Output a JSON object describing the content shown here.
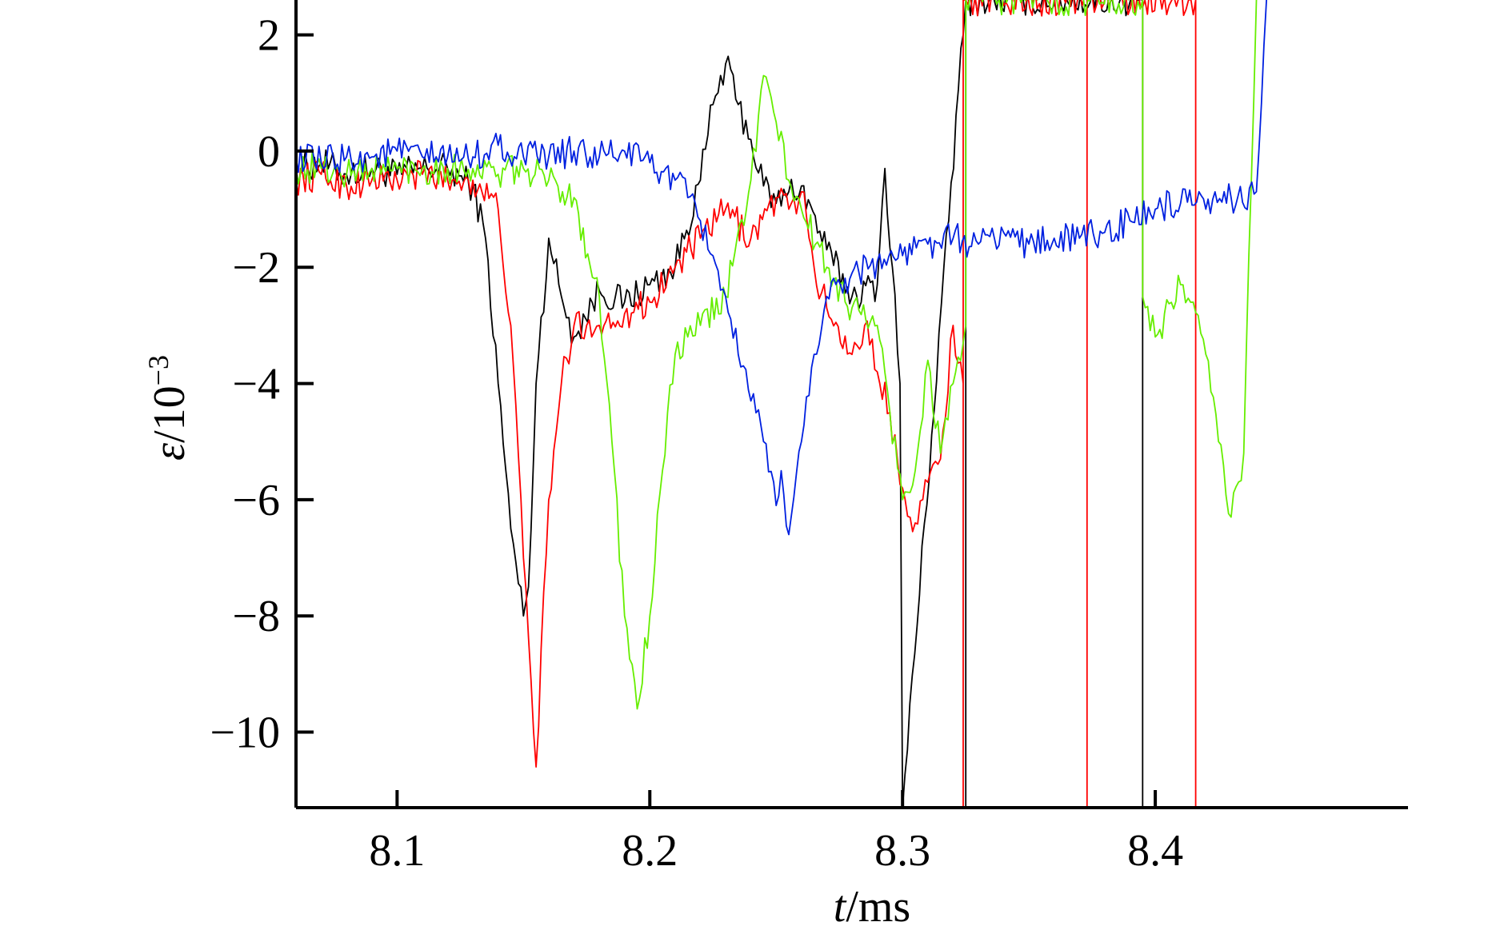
{
  "chart_data": {
    "type": "line",
    "title": "",
    "xlabel": {
      "var": "t",
      "rest": "/ms"
    },
    "ylabel": {
      "var": "ε",
      "rest": "/10",
      "sup": "−3"
    },
    "xlim": [
      8.06,
      8.5
    ],
    "ylim": [
      -11.3,
      2.6
    ],
    "xticks": [
      8.1,
      8.2,
      8.3,
      8.4
    ],
    "xtick_labels": [
      "8.1",
      "8.2",
      "8.3",
      "8.4"
    ],
    "yticks": [
      2,
      0,
      -2,
      -4,
      -6,
      -8,
      -10
    ],
    "ytick_labels": [
      "2",
      "0",
      "−2",
      "−4",
      "−6",
      "−8",
      "−10"
    ],
    "grid": false,
    "legend": "none",
    "series": [
      {
        "color": "#000000",
        "x": [
          8.06,
          8.07,
          8.08,
          8.09,
          8.1,
          8.11,
          8.12,
          8.13,
          8.135,
          8.14,
          8.145,
          8.15,
          8.152,
          8.155,
          8.16,
          8.165,
          8.17,
          8.18,
          8.19,
          8.2,
          8.21,
          8.22,
          8.225,
          8.23,
          8.235,
          8.24,
          8.245,
          8.25,
          8.255,
          8.26,
          8.27,
          8.28,
          8.29,
          8.293,
          8.296,
          8.299,
          8.3,
          8.325,
          8.325,
          8.325,
          8.395,
          8.395,
          8.395
        ],
        "y": [
          -0.3,
          -0.2,
          -0.4,
          -0.3,
          -0.4,
          -0.3,
          -0.3,
          -0.6,
          -1.5,
          -4.0,
          -6.5,
          -8.0,
          -7.5,
          -4.0,
          -1.5,
          -2.5,
          -3.2,
          -2.4,
          -2.6,
          -2.3,
          -2.0,
          -0.5,
          0.8,
          1.5,
          0.8,
          0.2,
          -0.6,
          -0.9,
          -0.7,
          -0.6,
          -1.7,
          -2.5,
          -2.3,
          -0.3,
          -2.0,
          -4.0,
          -11.3,
          2.6,
          -11.3,
          2.6,
          2.6,
          -11.3,
          2.6
        ]
      },
      {
        "color": "#ff0000",
        "x": [
          8.06,
          8.07,
          8.08,
          8.09,
          8.1,
          8.11,
          8.12,
          8.13,
          8.14,
          8.145,
          8.15,
          8.155,
          8.16,
          8.165,
          8.17,
          8.175,
          8.18,
          8.19,
          8.2,
          8.21,
          8.22,
          8.23,
          8.24,
          8.25,
          8.255,
          8.26,
          8.265,
          8.27,
          8.28,
          8.285,
          8.29,
          8.295,
          8.3,
          8.305,
          8.31,
          8.315,
          8.32,
          8.324,
          8.324,
          8.324,
          8.373,
          8.373,
          8.373,
          8.416,
          8.416
        ],
        "y": [
          -0.5,
          -0.4,
          -0.6,
          -0.5,
          -0.5,
          -0.4,
          -0.5,
          -0.5,
          -1.0,
          -3.0,
          -7.0,
          -10.6,
          -6.0,
          -4.0,
          -3.0,
          -3.0,
          -3.0,
          -2.8,
          -2.6,
          -2.0,
          -1.5,
          -1.0,
          -1.5,
          -0.8,
          -1.0,
          -0.7,
          -2.0,
          -2.7,
          -3.5,
          -3.0,
          -3.8,
          -4.5,
          -5.8,
          -6.4,
          -5.7,
          -5.3,
          -3.0,
          -4.0,
          -11.3,
          2.6,
          2.6,
          -11.3,
          2.6,
          2.6,
          -11.3
        ]
      },
      {
        "color": "#66ee00",
        "x": [
          8.06,
          8.07,
          8.08,
          8.09,
          8.1,
          8.11,
          8.12,
          8.13,
          8.14,
          8.15,
          8.16,
          8.17,
          8.18,
          8.185,
          8.19,
          8.195,
          8.2,
          8.205,
          8.21,
          8.215,
          8.22,
          8.23,
          8.24,
          8.245,
          8.25,
          8.255,
          8.26,
          8.27,
          8.28,
          8.29,
          8.295,
          8.3,
          8.305,
          8.31,
          8.315,
          8.32,
          8.325,
          8.325,
          8.395,
          8.395,
          8.4,
          8.41,
          8.415,
          8.42,
          8.425,
          8.43,
          8.435,
          8.44
        ],
        "y": [
          -0.3,
          -0.3,
          -0.4,
          -0.3,
          -0.3,
          -0.3,
          -0.3,
          -0.3,
          -0.4,
          -0.3,
          -0.5,
          -0.8,
          -2.5,
          -5.0,
          -8.0,
          -9.6,
          -8.0,
          -5.5,
          -3.5,
          -3.2,
          -3.0,
          -2.5,
          -0.5,
          1.3,
          0.5,
          -0.5,
          -1.0,
          -2.0,
          -2.7,
          -3.0,
          -4.5,
          -6.0,
          -5.5,
          -3.6,
          -5.2,
          -4.0,
          -3.0,
          2.6,
          2.6,
          -2.5,
          -3.2,
          -2.3,
          -2.6,
          -3.5,
          -5.0,
          -6.3,
          -5.2,
          2.6
        ]
      },
      {
        "color": "#0020e0",
        "x": [
          8.06,
          8.07,
          8.08,
          8.09,
          8.1,
          8.11,
          8.12,
          8.13,
          8.14,
          8.15,
          8.16,
          8.17,
          8.18,
          8.19,
          8.2,
          8.21,
          8.215,
          8.22,
          8.225,
          8.23,
          8.235,
          8.24,
          8.245,
          8.25,
          8.252,
          8.255,
          8.26,
          8.265,
          8.27,
          8.28,
          8.29,
          8.3,
          8.31,
          8.32,
          8.33,
          8.34,
          8.35,
          8.36,
          8.37,
          8.38,
          8.39,
          8.4,
          8.41,
          8.42,
          8.43,
          8.44,
          8.441,
          8.444
        ],
        "y": [
          -0.1,
          -0.2,
          -0.1,
          -0.1,
          0.0,
          -0.1,
          -0.1,
          -0.1,
          0.1,
          -0.1,
          -0.1,
          0.0,
          -0.1,
          0.0,
          -0.2,
          -0.5,
          -0.8,
          -1.2,
          -1.8,
          -2.5,
          -3.5,
          -4.3,
          -5.0,
          -6.1,
          -5.5,
          -6.6,
          -5.0,
          -3.5,
          -2.5,
          -2.1,
          -1.9,
          -1.8,
          -1.6,
          -1.5,
          -1.6,
          -1.4,
          -1.6,
          -1.5,
          -1.5,
          -1.4,
          -1.2,
          -1.0,
          -0.9,
          -1.0,
          -0.8,
          -0.7,
          0.0,
          2.6
        ]
      }
    ]
  }
}
